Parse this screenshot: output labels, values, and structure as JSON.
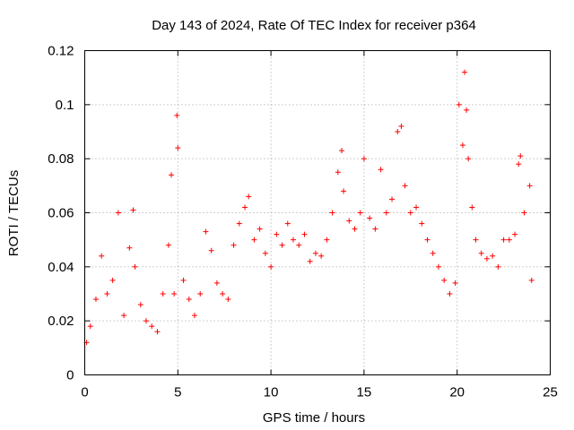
{
  "chart_data": {
    "type": "scatter",
    "title": "Day 143 of 2024, Rate Of TEC Index for receiver p364",
    "xlabel": "GPS time / hours",
    "ylabel": "ROTI / TECUs",
    "xlim": [
      0,
      25
    ],
    "ylim": [
      0,
      0.12
    ],
    "xticks": [
      0,
      5,
      10,
      15,
      20,
      25
    ],
    "xtick_labels": [
      "0",
      "5",
      "10",
      "15",
      "20",
      "25"
    ],
    "yticks": [
      0,
      0.02,
      0.04,
      0.06,
      0.08,
      0.1,
      0.12
    ],
    "ytick_labels": [
      "0",
      "0.02",
      "0.04",
      "0.06",
      "0.08",
      "0.1",
      "0.12"
    ],
    "grid": true,
    "marker": "+",
    "marker_color": "#ff0000",
    "series": [
      {
        "name": "p364",
        "x": [
          0.1,
          0.3,
          0.6,
          0.9,
          1.2,
          1.5,
          1.8,
          2.1,
          2.4,
          2.6,
          2.7,
          3.0,
          3.3,
          3.6,
          3.9,
          4.2,
          4.5,
          4.65,
          4.8,
          4.95,
          5.0,
          5.3,
          5.6,
          5.9,
          6.2,
          6.5,
          6.8,
          7.1,
          7.4,
          7.7,
          8.0,
          8.3,
          8.6,
          8.8,
          9.1,
          9.4,
          9.7,
          10.0,
          10.3,
          10.6,
          10.9,
          11.2,
          11.5,
          11.8,
          12.1,
          12.4,
          12.7,
          13.0,
          13.3,
          13.6,
          13.8,
          13.9,
          14.2,
          14.5,
          14.8,
          15.0,
          15.3,
          15.6,
          15.9,
          16.2,
          16.5,
          16.8,
          17.0,
          17.2,
          17.5,
          17.8,
          18.1,
          18.4,
          18.7,
          19.0,
          19.3,
          19.6,
          19.9,
          20.1,
          20.3,
          20.4,
          20.5,
          20.6,
          20.8,
          21.0,
          21.3,
          21.6,
          21.9,
          22.2,
          22.5,
          22.8,
          23.1,
          23.3,
          23.4,
          23.6,
          23.9,
          24.0
        ],
        "y": [
          0.012,
          0.018,
          0.028,
          0.044,
          0.03,
          0.035,
          0.06,
          0.022,
          0.047,
          0.061,
          0.04,
          0.026,
          0.02,
          0.018,
          0.016,
          0.03,
          0.048,
          0.074,
          0.03,
          0.096,
          0.084,
          0.035,
          0.028,
          0.022,
          0.03,
          0.053,
          0.046,
          0.034,
          0.03,
          0.028,
          0.048,
          0.056,
          0.062,
          0.066,
          0.05,
          0.054,
          0.045,
          0.04,
          0.052,
          0.048,
          0.056,
          0.05,
          0.048,
          0.052,
          0.042,
          0.045,
          0.044,
          0.05,
          0.06,
          0.075,
          0.083,
          0.068,
          0.057,
          0.054,
          0.06,
          0.08,
          0.058,
          0.054,
          0.076,
          0.06,
          0.065,
          0.09,
          0.092,
          0.07,
          0.06,
          0.062,
          0.056,
          0.05,
          0.045,
          0.04,
          0.035,
          0.03,
          0.034,
          0.1,
          0.085,
          0.112,
          0.098,
          0.08,
          0.062,
          0.05,
          0.045,
          0.043,
          0.044,
          0.04,
          0.05,
          0.05,
          0.052,
          0.078,
          0.081,
          0.06,
          0.07,
          0.035
        ]
      }
    ]
  }
}
